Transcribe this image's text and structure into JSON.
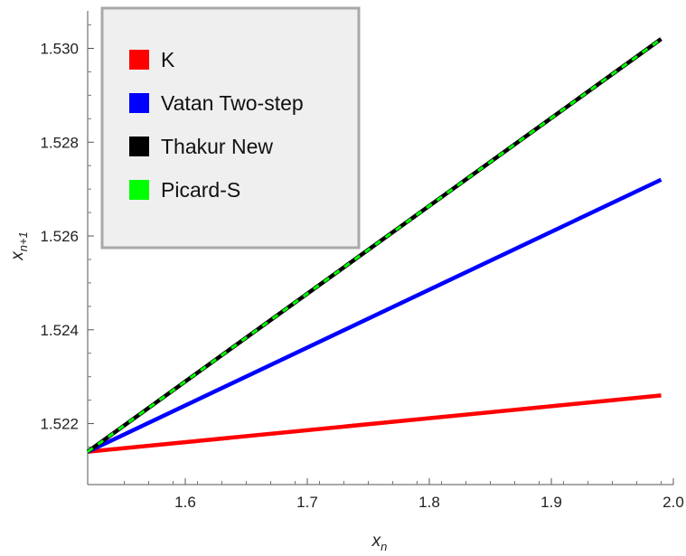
{
  "chart_data": {
    "type": "line",
    "xlabel": {
      "base": "x",
      "sub": "n"
    },
    "ylabel": {
      "base": "x",
      "sub": "n+1"
    },
    "xlim": [
      1.52,
      2.0
    ],
    "ylim": [
      1.5207,
      1.5308
    ],
    "xticks": [
      1.6,
      1.7,
      1.8,
      1.9,
      2.0
    ],
    "xtick_labels": [
      "1.6",
      "1.7",
      "1.8",
      "1.9",
      "2.0"
    ],
    "yticks": [
      1.522,
      1.524,
      1.526,
      1.528,
      1.53
    ],
    "ytick_labels": [
      "1.522",
      "1.524",
      "1.526",
      "1.528",
      "1.530"
    ],
    "grid": false,
    "legend_position": "top-left",
    "series": [
      {
        "name": "K",
        "color": "#ff0000",
        "style": "solid",
        "x": [
          1.52,
          1.99
        ],
        "y": [
          1.5214,
          1.5226
        ]
      },
      {
        "name": "Vatan Two-step",
        "color": "#0000ff",
        "style": "solid",
        "x": [
          1.52,
          1.99
        ],
        "y": [
          1.5214,
          1.5272
        ]
      },
      {
        "name": "Thakur New",
        "color": "#000000",
        "style": "solid",
        "x": [
          1.52,
          1.99
        ],
        "y": [
          1.5214,
          1.5302
        ]
      },
      {
        "name": "Picard-S",
        "color": "#00ff00",
        "style": "dashed",
        "x": [
          1.52,
          1.99
        ],
        "y": [
          1.5214,
          1.5302
        ]
      }
    ]
  }
}
